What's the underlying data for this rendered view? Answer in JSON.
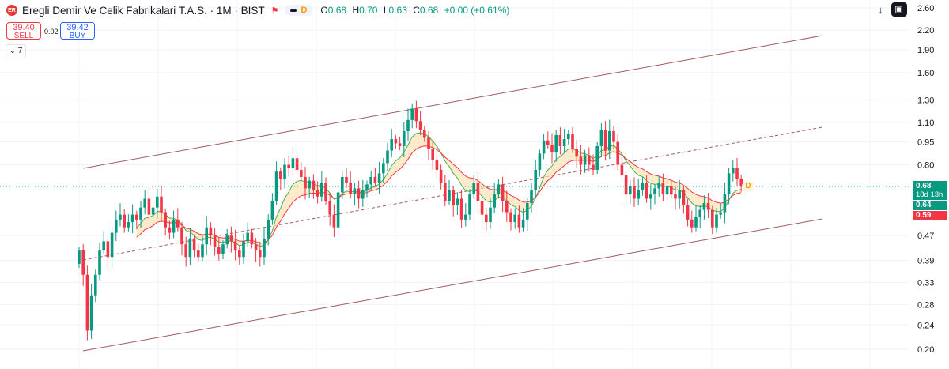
{
  "header": {
    "symbol_name": "Eregli Demir Ve Celik Fabrikalari T.A.S. · 1M · BIST",
    "logo_text": "ER",
    "indicator_label": "D",
    "ohlc": {
      "open_label": "O",
      "open": "0.68",
      "high_label": "H",
      "high": "0.70",
      "low_label": "L",
      "low": "0.63",
      "close_label": "C",
      "close": "0.68",
      "change": "+0.00 (+0.61%)"
    }
  },
  "trade": {
    "sell_price": "39.40",
    "sell_label": "SELL",
    "spread": "0.02",
    "buy_price": "39.42",
    "buy_label": "BUY"
  },
  "indicator_counter": "7",
  "price_tags": {
    "last": "0.68",
    "countdown": "18d 13h",
    "ma_fast": "0.64",
    "ma_slow": "0.59"
  },
  "dividend_marker": "D",
  "colors": {
    "up": "#089981",
    "down": "#f23645",
    "channel": "#a15a5a",
    "ma_fast": "#4caf50",
    "ma_slow": "#f23645",
    "fill": "#fde3b5"
  },
  "chart_data": {
    "type": "candlestick",
    "scale": "log",
    "y_ticks": [
      2.6,
      2.2,
      1.9,
      1.6,
      1.3,
      1.1,
      0.95,
      0.8,
      0.68,
      0.47,
      0.39,
      0.33,
      0.28,
      0.24,
      0.2
    ],
    "y_tick_labels": [
      "2.60",
      "2.20",
      "1.90",
      "1.60",
      "1.30",
      "1.10",
      "0.95",
      "0.80",
      "",
      "0.47",
      "0.39",
      "0.33",
      "0.28",
      "0.24",
      "0.20"
    ],
    "ylim": [
      0.165,
      2.7
    ],
    "grid": true,
    "last_price": 0.68,
    "close": [
      0.42,
      0.35,
      0.23,
      0.3,
      0.35,
      0.42,
      0.45,
      0.4,
      0.48,
      0.53,
      0.55,
      0.5,
      0.52,
      0.55,
      0.53,
      0.58,
      0.62,
      0.55,
      0.58,
      0.63,
      0.56,
      0.5,
      0.48,
      0.53,
      0.5,
      0.44,
      0.4,
      0.46,
      0.42,
      0.4,
      0.44,
      0.5,
      0.47,
      0.43,
      0.41,
      0.44,
      0.47,
      0.45,
      0.42,
      0.4,
      0.45,
      0.48,
      0.44,
      0.42,
      0.4,
      0.46,
      0.53,
      0.61,
      0.76,
      0.72,
      0.8,
      0.78,
      0.84,
      0.77,
      0.73,
      0.67,
      0.71,
      0.66,
      0.63,
      0.7,
      0.61,
      0.55,
      0.5,
      0.65,
      0.73,
      0.7,
      0.64,
      0.67,
      0.62,
      0.66,
      0.69,
      0.73,
      0.7,
      0.75,
      0.81,
      0.89,
      0.97,
      0.94,
      0.92,
      1.03,
      1.12,
      1.22,
      1.11,
      1.04,
      0.98,
      0.9,
      0.83,
      0.77,
      0.7,
      0.61,
      0.66,
      0.59,
      0.62,
      0.53,
      0.55,
      0.64,
      0.7,
      0.61,
      0.55,
      0.52,
      0.58,
      0.64,
      0.69,
      0.61,
      0.56,
      0.52,
      0.55,
      0.5,
      0.53,
      0.6,
      0.66,
      0.77,
      0.87,
      0.96,
      0.93,
      0.88,
      1.0,
      0.92,
      0.97,
      1.01,
      0.9,
      0.85,
      0.8,
      0.86,
      0.8,
      0.77,
      0.92,
      1.04,
      0.89,
      1.03,
      0.95,
      0.8,
      0.74,
      0.64,
      0.68,
      0.62,
      0.66,
      0.7,
      0.62,
      0.64,
      0.67,
      0.7,
      0.64,
      0.68,
      0.64,
      0.62,
      0.66,
      0.59,
      0.53,
      0.5,
      0.54,
      0.57,
      0.6,
      0.57,
      0.5,
      0.55,
      0.56,
      0.64,
      0.75,
      0.78,
      0.72,
      0.68
    ]
  }
}
